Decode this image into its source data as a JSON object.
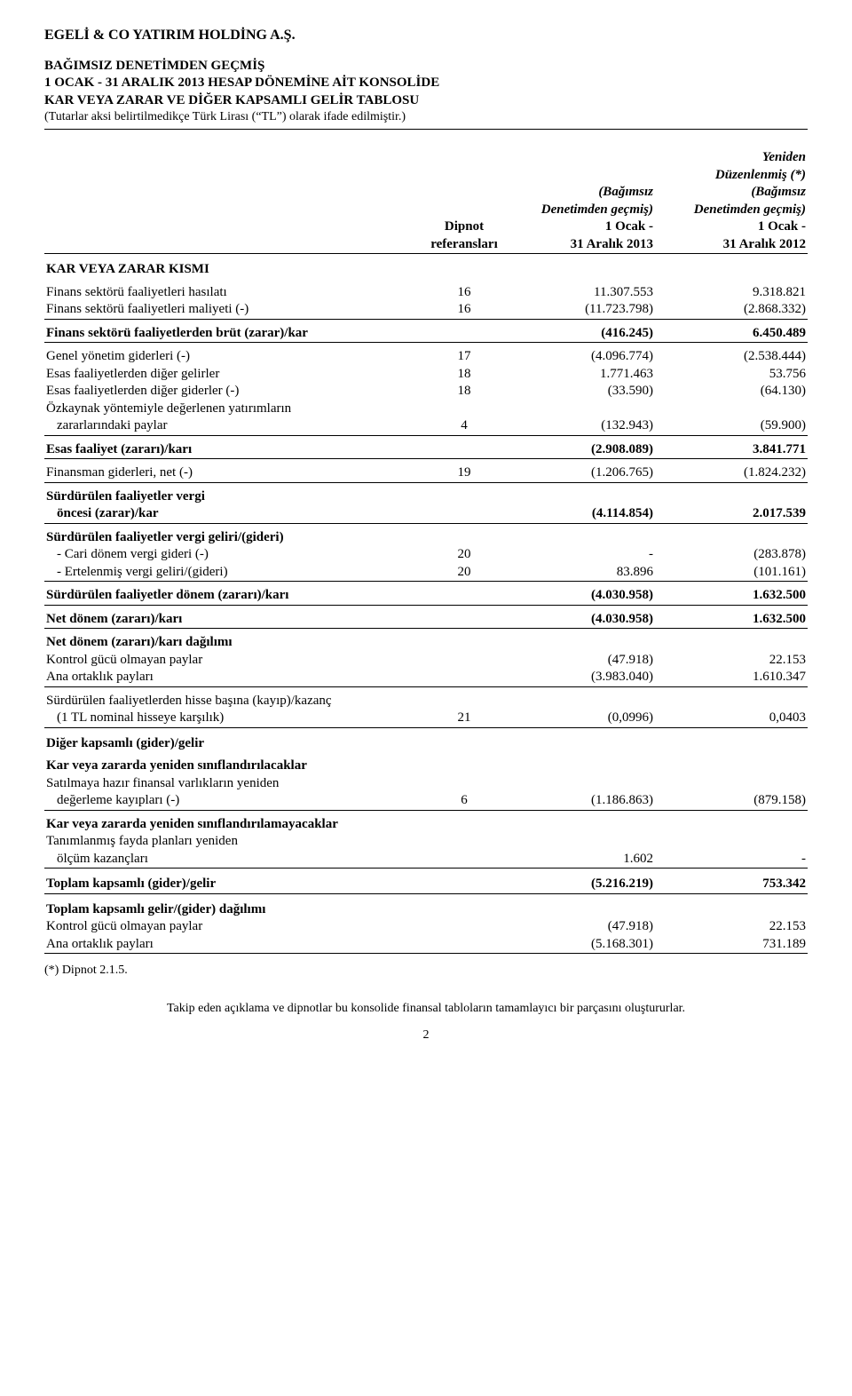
{
  "company_name": "EGELİ & CO YATIRIM HOLDİNG A.Ş.",
  "title_line1": "BAĞIMSIZ DENETİMDEN GEÇMİŞ",
  "title_line2": "1 OCAK - 31 ARALIK 2013 HESAP DÖNEMİNE AİT KONSOLİDE",
  "title_line3": "KAR VEYA ZARAR VE DİĞER KAPSAMLI GELİR TABLOSU",
  "title_note": "(Tutarlar aksi belirtilmedikçe Türk Lirası (“TL”) olarak ifade edilmiştir.)",
  "header": {
    "col_ref_l1": "Dipnot",
    "col_ref_l2": "referansları",
    "col2_l1": "(Bağımsız",
    "col2_l2": "Denetimden geçmiş)",
    "col2_l3": "1 Ocak -",
    "col2_l4": "31 Aralık 2013",
    "col3_l0": "Yeniden",
    "col3_l1": "Düzenlenmiş (*)",
    "col3_l2": "(Bağımsız",
    "col3_l3": "Denetimden geçmiş)",
    "col3_l4": "1 Ocak -",
    "col3_l5": "31 Aralık 2012"
  },
  "sections": {
    "kvzk": "KAR VEYA ZARAR KISMI",
    "brut": "Finans sektörü faaliyetlerden brüt (zarar)/kar",
    "esas": "Esas faaliyet (zararı)/karı",
    "sfvg_l1": "Sürdürülen faaliyetler vergi",
    "sfvg_l2": "öncesi (zarar)/kar",
    "sfvgg": "Sürdürülen faaliyetler vergi geliri/(gideri)",
    "sfdzk": "Sürdürülen faaliyetler dönem (zararı)/karı",
    "ndzk": "Net dönem (zararı)/karı",
    "ndzkd": "Net dönem (zararı)/karı dağılımı",
    "dkgg": "Diğer kapsamlı (gider)/gelir",
    "kvzys": "Kar veya zararda yeniden sınıflandırılacaklar",
    "kvzysm": "Kar veya zararda yeniden sınıflandırılamayacaklar",
    "tkgg": "Toplam kapsamlı (gider)/gelir",
    "tkggd": "Toplam kapsamlı gelir/(gider) dağılımı"
  },
  "rows": {
    "fsh": {
      "label": "Finans sektörü faaliyetleri hasılatı",
      "ref": "16",
      "v1": "11.307.553",
      "v2": "9.318.821"
    },
    "fsm": {
      "label": "Finans sektörü faaliyetleri maliyeti (-)",
      "ref": "16",
      "v1": "(11.723.798)",
      "v2": "(2.868.332)"
    },
    "brut": {
      "v1": "(416.245)",
      "v2": "6.450.489"
    },
    "gyg": {
      "label": "Genel yönetim giderleri (-)",
      "ref": "17",
      "v1": "(4.096.774)",
      "v2": "(2.538.444)"
    },
    "efdg": {
      "label": "Esas faaliyetlerden diğer gelirler",
      "ref": "18",
      "v1": "1.771.463",
      "v2": "53.756"
    },
    "efdgd": {
      "label": "Esas faaliyetlerden diğer giderler (-)",
      "ref": "18",
      "v1": "(33.590)",
      "v2": "(64.130)"
    },
    "oz_l1": "Özkaynak yöntemiyle değerlenen yatırımların",
    "oz_l2": {
      "label": "zararlarındaki paylar",
      "ref": "4",
      "v1": "(132.943)",
      "v2": "(59.900)"
    },
    "esas": {
      "v1": "(2.908.089)",
      "v2": "3.841.771"
    },
    "fgn": {
      "label": "Finansman giderleri, net (-)",
      "ref": "19",
      "v1": "(1.206.765)",
      "v2": "(1.824.232)"
    },
    "sfvg": {
      "v1": "(4.114.854)",
      "v2": "2.017.539"
    },
    "cdvg": {
      "label": "- Cari dönem vergi gideri (-)",
      "ref": "20",
      "v1": "-",
      "v2": "(283.878)"
    },
    "evg": {
      "label": "- Ertelenmiş vergi geliri/(gideri)",
      "ref": "20",
      "v1": "83.896",
      "v2": "(101.161)"
    },
    "sfdzk": {
      "v1": "(4.030.958)",
      "v2": "1.632.500"
    },
    "ndzk": {
      "v1": "(4.030.958)",
      "v2": "1.632.500"
    },
    "kgop": {
      "label": "Kontrol gücü olmayan paylar",
      "v1": "(47.918)",
      "v2": "22.153"
    },
    "aop": {
      "label": "Ana ortaklık payları",
      "v1": "(3.983.040)",
      "v2": "1.610.347"
    },
    "hbk_l1": "Sürdürülen faaliyetlerden hisse başına (kayıp)/kazanç",
    "hbk": {
      "label": "(1 TL nominal hisseye karşılık)",
      "ref": "21",
      "v1": "(0,0996)",
      "v2": "0,0403"
    },
    "shfy_l1": "Satılmaya hazır finansal varlıkların yeniden",
    "shfy": {
      "label": "değerleme kayıpları (-)",
      "ref": "6",
      "v1": "(1.186.863)",
      "v2": "(879.158)"
    },
    "tfp_l1": "Tanımlanmış fayda planları yeniden",
    "tfp": {
      "label": "ölçüm kazançları",
      "v1": "1.602",
      "v2": "-"
    },
    "tkgg": {
      "v1": "(5.216.219)",
      "v2": "753.342"
    },
    "kgop2": {
      "label": "Kontrol gücü olmayan paylar",
      "v1": "(47.918)",
      "v2": "22.153"
    },
    "aop2": {
      "label": "Ana ortaklık payları",
      "v1": "(5.168.301)",
      "v2": "731.189"
    }
  },
  "footnote": "(*)    Dipnot 2.1.5.",
  "footer_line": "Takip eden açıklama ve dipnotlar bu konsolide finansal tabloların tamamlayıcı bir parçasını oluştururlar.",
  "page_number": "2"
}
